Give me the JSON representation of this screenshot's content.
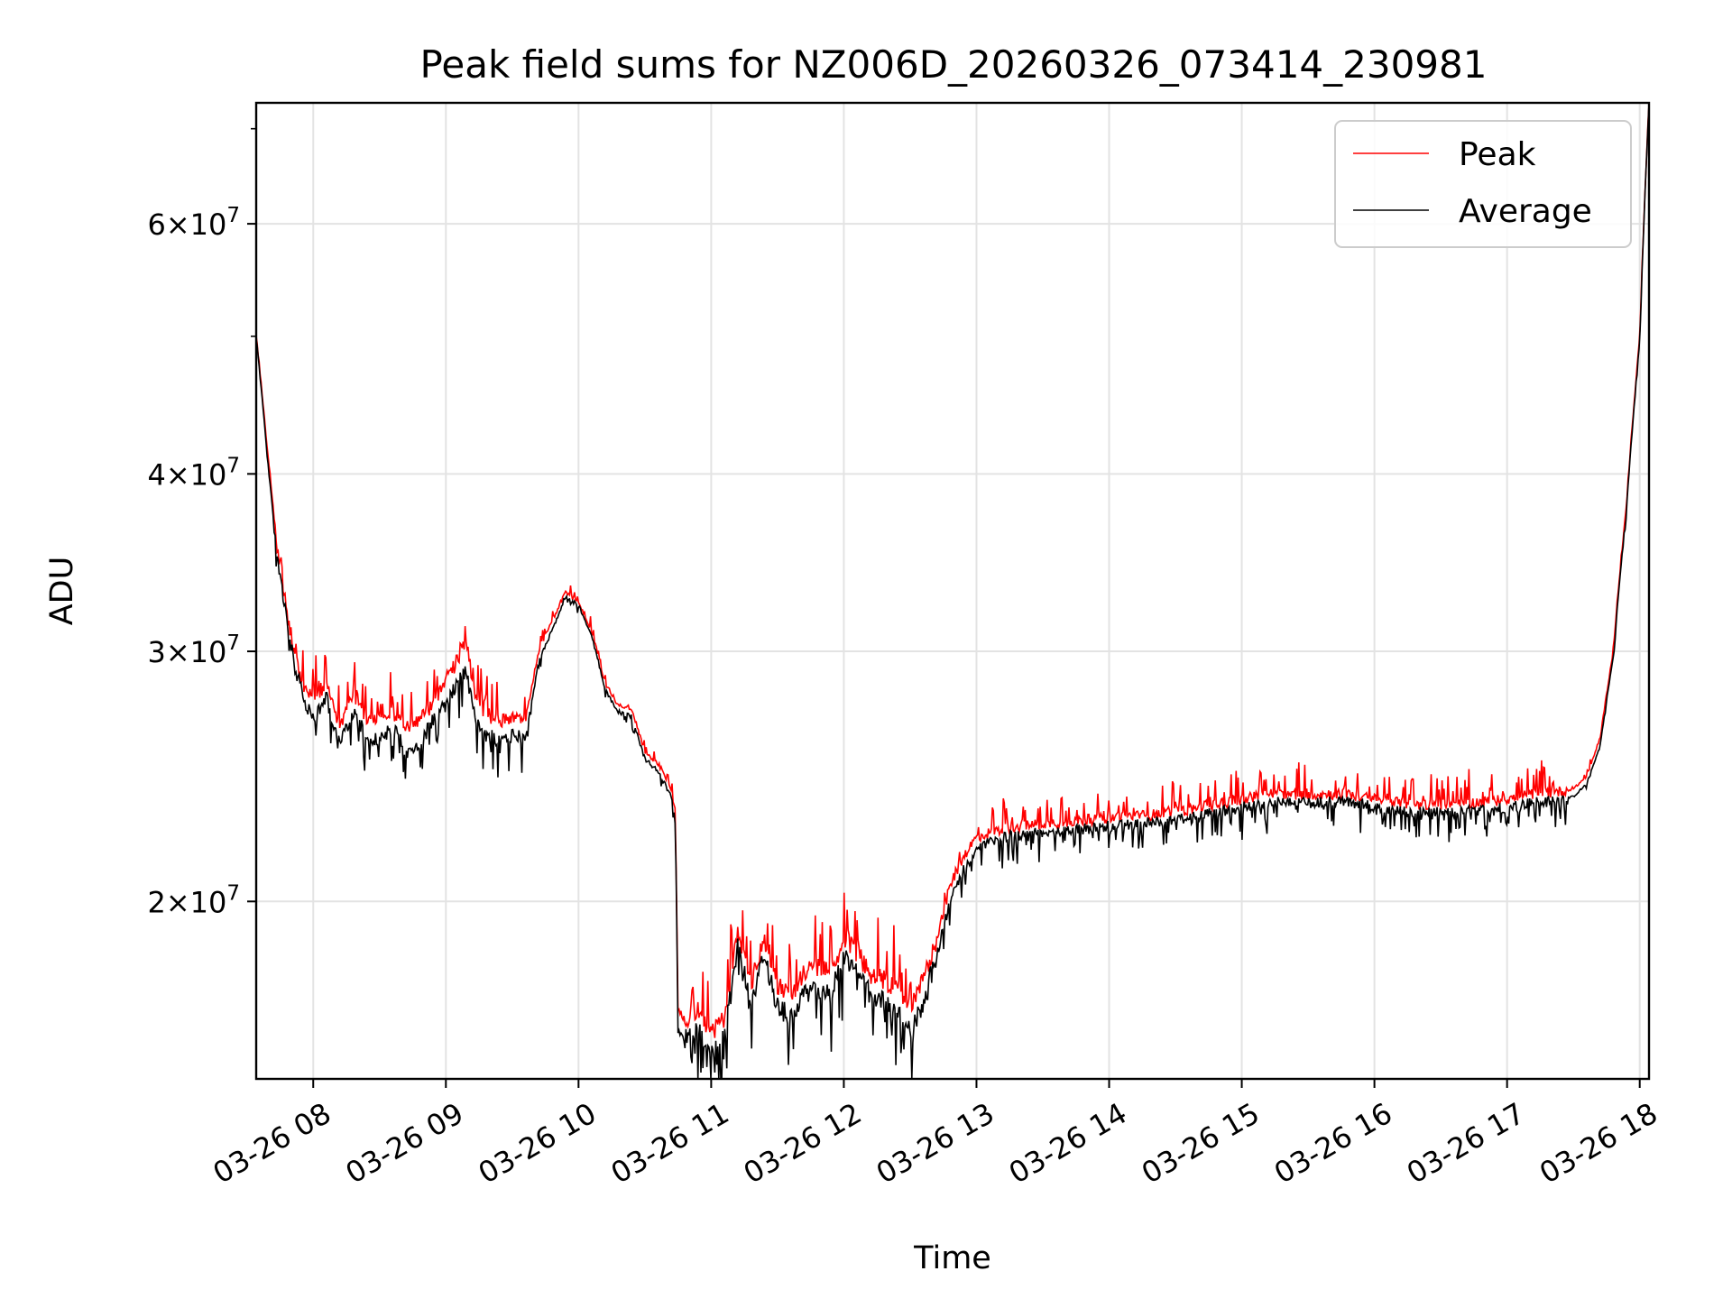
{
  "chart_data": {
    "type": "line",
    "title": "Peak field sums for NZ006D_20260326_073414_230981",
    "xlabel": "Time",
    "ylabel": "ADU",
    "yscale": "log",
    "ylim": [
      15000000,
      73000000
    ],
    "xlim_hours": [
      7.57,
      18.07
    ],
    "grid": true,
    "legend": "upper right",
    "x_ticks": [
      {
        "hour": 8,
        "label": "03-26 08"
      },
      {
        "hour": 9,
        "label": "03-26 09"
      },
      {
        "hour": 10,
        "label": "03-26 10"
      },
      {
        "hour": 11,
        "label": "03-26 11"
      },
      {
        "hour": 12,
        "label": "03-26 12"
      },
      {
        "hour": 13,
        "label": "03-26 13"
      },
      {
        "hour": 14,
        "label": "03-26 14"
      },
      {
        "hour": 15,
        "label": "03-26 15"
      },
      {
        "hour": 16,
        "label": "03-26 16"
      },
      {
        "hour": 17,
        "label": "03-26 17"
      },
      {
        "hour": 18,
        "label": "03-26 18"
      }
    ],
    "y_ticks": [
      {
        "value": 20000000,
        "mantissa": "2",
        "base": "10",
        "exp": "7"
      },
      {
        "value": 30000000,
        "mantissa": "3",
        "base": "10",
        "exp": "7"
      },
      {
        "value": 40000000,
        "mantissa": "4",
        "base": "10",
        "exp": "7"
      },
      {
        "value": 60000000,
        "mantissa": "6",
        "base": "10",
        "exp": "7"
      }
    ],
    "y_minor_ticks": [
      50000000,
      70000000
    ],
    "series": [
      {
        "name": "Peak",
        "color": "#ff0000",
        "x": [
          7.57,
          7.65,
          7.72,
          7.8,
          7.87,
          7.95,
          8.02,
          8.1,
          8.2,
          8.3,
          8.4,
          8.5,
          8.6,
          8.7,
          8.8,
          8.9,
          9.0,
          9.08,
          9.15,
          9.22,
          9.3,
          9.4,
          9.5,
          9.6,
          9.7,
          9.8,
          9.9,
          10.0,
          10.1,
          10.2,
          10.3,
          10.4,
          10.5,
          10.6,
          10.7,
          10.73,
          10.75,
          10.8,
          10.9,
          11.0,
          11.1,
          11.2,
          11.3,
          11.4,
          11.5,
          11.6,
          11.7,
          11.8,
          11.9,
          12.0,
          12.1,
          12.2,
          12.3,
          12.4,
          12.5,
          12.6,
          12.7,
          12.8,
          12.9,
          13.0,
          13.2,
          13.5,
          13.8,
          14.0,
          14.3,
          14.6,
          15.0,
          15.2,
          15.5,
          15.8,
          16.0,
          16.3,
          16.6,
          17.0,
          17.2,
          17.4,
          17.5,
          17.6,
          17.7,
          17.8,
          17.9,
          18.0,
          18.07
        ],
        "values": [
          50000000,
          42000000,
          36000000,
          32000000,
          29500000,
          28000000,
          27800000,
          28500000,
          26500000,
          28000000,
          27000000,
          26800000,
          27200000,
          26500000,
          26800000,
          27500000,
          28500000,
          29500000,
          30500000,
          28000000,
          27000000,
          26800000,
          27000000,
          26800000,
          30000000,
          31500000,
          33000000,
          32500000,
          31000000,
          28500000,
          27500000,
          27300000,
          25500000,
          25000000,
          24000000,
          23000000,
          16800000,
          16500000,
          16800000,
          16200000,
          16500000,
          19000000,
          17500000,
          18800000,
          17500000,
          17200000,
          17800000,
          18000000,
          17800000,
          18800000,
          18400000,
          17800000,
          17600000,
          17400000,
          16800000,
          17600000,
          18800000,
          20500000,
          21500000,
          22200000,
          22500000,
          22700000,
          22800000,
          22900000,
          23000000,
          23200000,
          23600000,
          23800000,
          23800000,
          23800000,
          23600000,
          23400000,
          23400000,
          23600000,
          23800000,
          23900000,
          24000000,
          24500000,
          26000000,
          30000000,
          38000000,
          50000000,
          73000000
        ]
      },
      {
        "name": "Average",
        "color": "#000000",
        "x": [
          7.57,
          7.65,
          7.72,
          7.8,
          7.87,
          7.95,
          8.02,
          8.1,
          8.2,
          8.3,
          8.4,
          8.5,
          8.6,
          8.7,
          8.8,
          8.9,
          9.0,
          9.08,
          9.15,
          9.22,
          9.3,
          9.4,
          9.5,
          9.6,
          9.7,
          9.8,
          9.9,
          10.0,
          10.1,
          10.2,
          10.3,
          10.4,
          10.5,
          10.6,
          10.7,
          10.73,
          10.75,
          10.8,
          10.9,
          11.0,
          11.1,
          11.2,
          11.3,
          11.4,
          11.5,
          11.6,
          11.7,
          11.8,
          11.9,
          12.0,
          12.1,
          12.2,
          12.3,
          12.4,
          12.5,
          12.6,
          12.7,
          12.8,
          12.9,
          13.0,
          13.2,
          13.5,
          13.8,
          14.0,
          14.3,
          14.6,
          15.0,
          15.2,
          15.5,
          15.8,
          16.0,
          16.3,
          16.6,
          17.0,
          17.2,
          17.4,
          17.5,
          17.6,
          17.7,
          17.8,
          17.9,
          18.0,
          18.07
        ],
        "values": [
          50000000,
          41500000,
          35500000,
          31500000,
          29000000,
          27500000,
          27000000,
          27800000,
          25800000,
          27200000,
          26200000,
          26000000,
          26500000,
          25500000,
          25800000,
          26800000,
          27500000,
          28500000,
          29000000,
          27000000,
          26200000,
          26000000,
          26200000,
          26000000,
          29500000,
          31000000,
          32800000,
          32300000,
          30800000,
          28200000,
          27200000,
          27000000,
          25200000,
          24700000,
          23700000,
          22700000,
          16200000,
          16000000,
          16300000,
          15600000,
          16000000,
          18600000,
          17000000,
          18300000,
          16900000,
          16600000,
          17200000,
          17400000,
          17200000,
          18300000,
          17800000,
          17200000,
          17000000,
          16800000,
          16200000,
          17000000,
          18300000,
          20000000,
          21000000,
          21800000,
          22200000,
          22400000,
          22500000,
          22600000,
          22700000,
          22900000,
          23300000,
          23500000,
          23500000,
          23500000,
          23300000,
          23100000,
          23100000,
          23300000,
          23500000,
          23600000,
          23700000,
          24200000,
          25700000,
          29700000,
          37700000,
          49700000,
          73000000
        ]
      }
    ]
  }
}
